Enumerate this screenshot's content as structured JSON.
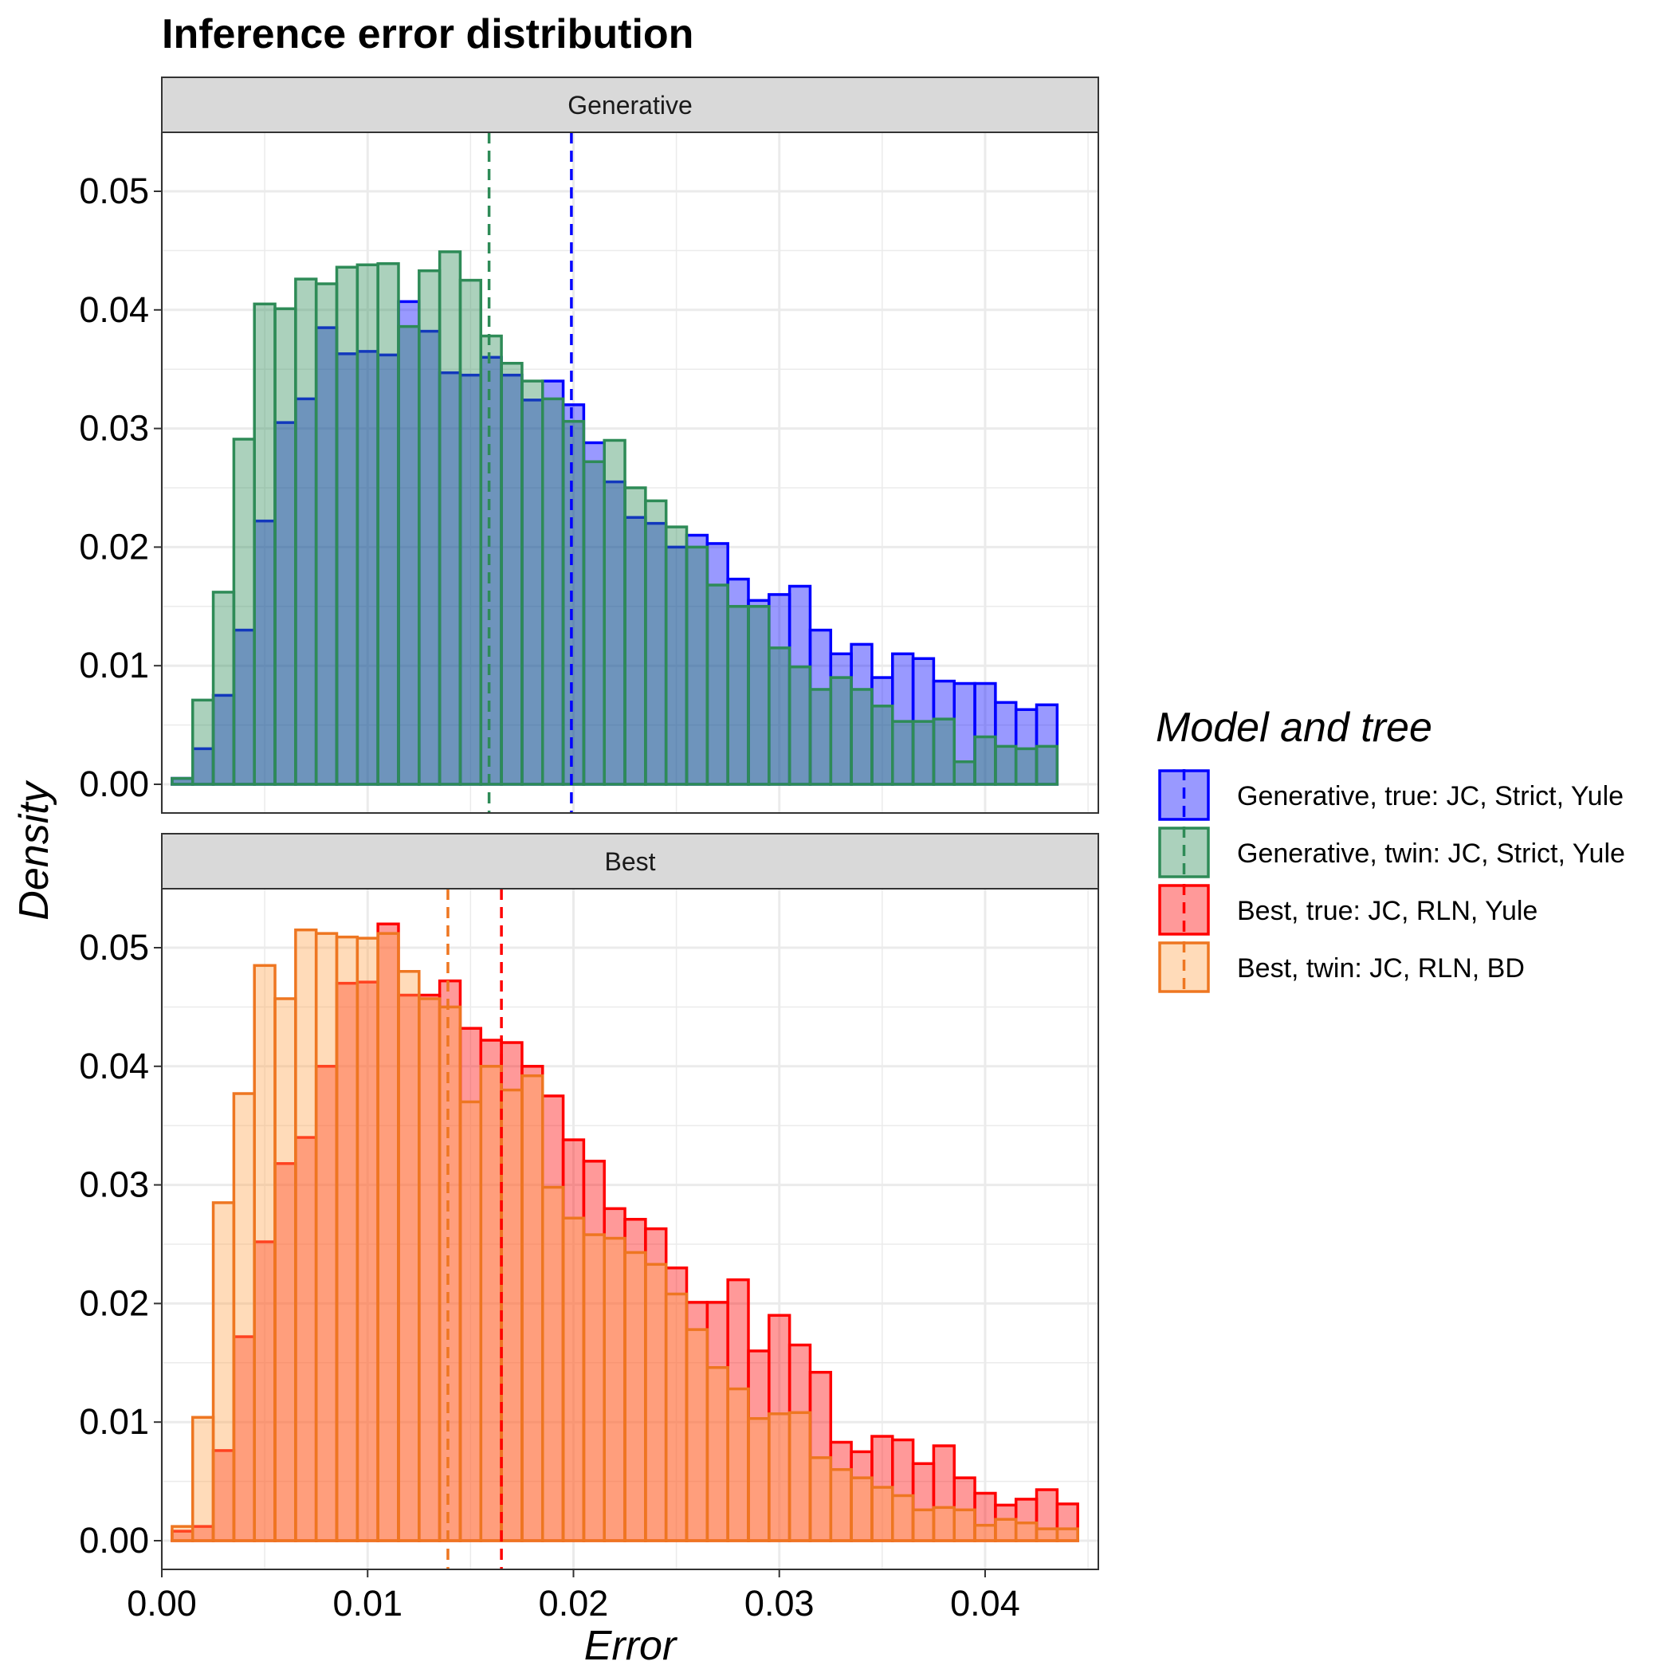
{
  "chart_data": {
    "type": "histogram",
    "title": "Inference error distribution",
    "xlabel": "Error",
    "ylabel": "Density",
    "xlim": [
      0,
      0.0455
    ],
    "ylim": [
      0,
      0.052
    ],
    "x_ticks": [
      "0.00",
      "0.01",
      "0.02",
      "0.03",
      "0.04"
    ],
    "y_ticks": [
      "0.00",
      "0.01",
      "0.02",
      "0.03",
      "0.04",
      "0.05"
    ],
    "grid": true,
    "bin_start": 0.0005,
    "bin_width": 0.001,
    "legend": {
      "title": "Model and tree",
      "position": "right",
      "entries": [
        {
          "label": "Generative, true: JC, Strict, Yule",
          "fill": "#0000FF",
          "stroke": "#0000FF"
        },
        {
          "label": "Generative, twin: JC, Strict, Yule",
          "fill": "#2E8B57",
          "stroke": "#2E8B57"
        },
        {
          "label": "Best, true: JC, RLN, Yule",
          "fill": "#FF0000",
          "stroke": "#FF0000"
        },
        {
          "label": "Best, twin: JC, RLN, BD",
          "fill": "#FFA54F",
          "stroke": "#EE7621"
        }
      ]
    },
    "panels": [
      {
        "strip": "Generative",
        "series": [
          {
            "name": "Generative, true: JC, Strict, Yule",
            "fill": "#0000FF",
            "stroke": "#0000FF",
            "mean": 0.0199,
            "values": [
              0.0005,
              0.003,
              0.0075,
              0.013,
              0.0222,
              0.0305,
              0.0325,
              0.0385,
              0.0363,
              0.0365,
              0.0362,
              0.0407,
              0.0382,
              0.0347,
              0.0345,
              0.036,
              0.0345,
              0.0324,
              0.034,
              0.032,
              0.0288,
              0.0255,
              0.0225,
              0.022,
              0.02,
              0.021,
              0.0203,
              0.0173,
              0.0155,
              0.016,
              0.0167,
              0.013,
              0.011,
              0.0118,
              0.009,
              0.011,
              0.0106,
              0.0087,
              0.0085,
              0.0085,
              0.0069,
              0.0063,
              0.0067
            ]
          },
          {
            "name": "Generative, twin: JC, Strict, Yule",
            "fill": "#2E8B57",
            "stroke": "#2E8B57",
            "mean": 0.0159,
            "values": [
              0.0005,
              0.0071,
              0.0162,
              0.0291,
              0.0405,
              0.0401,
              0.0426,
              0.0422,
              0.0436,
              0.0438,
              0.0439,
              0.0386,
              0.0433,
              0.0449,
              0.0425,
              0.0378,
              0.0355,
              0.034,
              0.0325,
              0.0306,
              0.0272,
              0.029,
              0.025,
              0.0239,
              0.0217,
              0.02,
              0.0168,
              0.015,
              0.015,
              0.0115,
              0.0099,
              0.008,
              0.009,
              0.008,
              0.0066,
              0.0053,
              0.0053,
              0.0055,
              0.0019,
              0.004,
              0.0032,
              0.003,
              0.0032
            ]
          }
        ]
      },
      {
        "strip": "Best",
        "series": [
          {
            "name": "Best, true: JC, RLN, Yule",
            "fill": "#FF0000",
            "stroke": "#FF0000",
            "mean": 0.0165,
            "values": [
              0.0008,
              0.0012,
              0.0076,
              0.0172,
              0.0252,
              0.0318,
              0.034,
              0.04,
              0.047,
              0.0471,
              0.052,
              0.046,
              0.046,
              0.0472,
              0.0432,
              0.0422,
              0.042,
              0.04,
              0.0375,
              0.0338,
              0.032,
              0.028,
              0.0271,
              0.0263,
              0.023,
              0.0201,
              0.0201,
              0.022,
              0.016,
              0.019,
              0.0165,
              0.0142,
              0.0083,
              0.0075,
              0.0088,
              0.0085,
              0.0065,
              0.008,
              0.0053,
              0.004,
              0.003,
              0.0035,
              0.0043,
              0.0031
            ]
          },
          {
            "name": "Best, twin: JC, RLN, BD",
            "fill": "#FFA54F",
            "stroke": "#EE7621",
            "mean": 0.0139,
            "values": [
              0.0012,
              0.0104,
              0.0285,
              0.0377,
              0.0485,
              0.0457,
              0.0515,
              0.0512,
              0.0509,
              0.0508,
              0.0512,
              0.048,
              0.0457,
              0.045,
              0.037,
              0.04,
              0.038,
              0.0392,
              0.0298,
              0.0272,
              0.0258,
              0.0255,
              0.0243,
              0.0233,
              0.0208,
              0.0178,
              0.0146,
              0.0128,
              0.0103,
              0.0107,
              0.0108,
              0.007,
              0.006,
              0.0053,
              0.0045,
              0.0038,
              0.0026,
              0.0028,
              0.0026,
              0.0013,
              0.0018,
              0.0015,
              0.001,
              0.001
            ]
          }
        ]
      }
    ]
  }
}
